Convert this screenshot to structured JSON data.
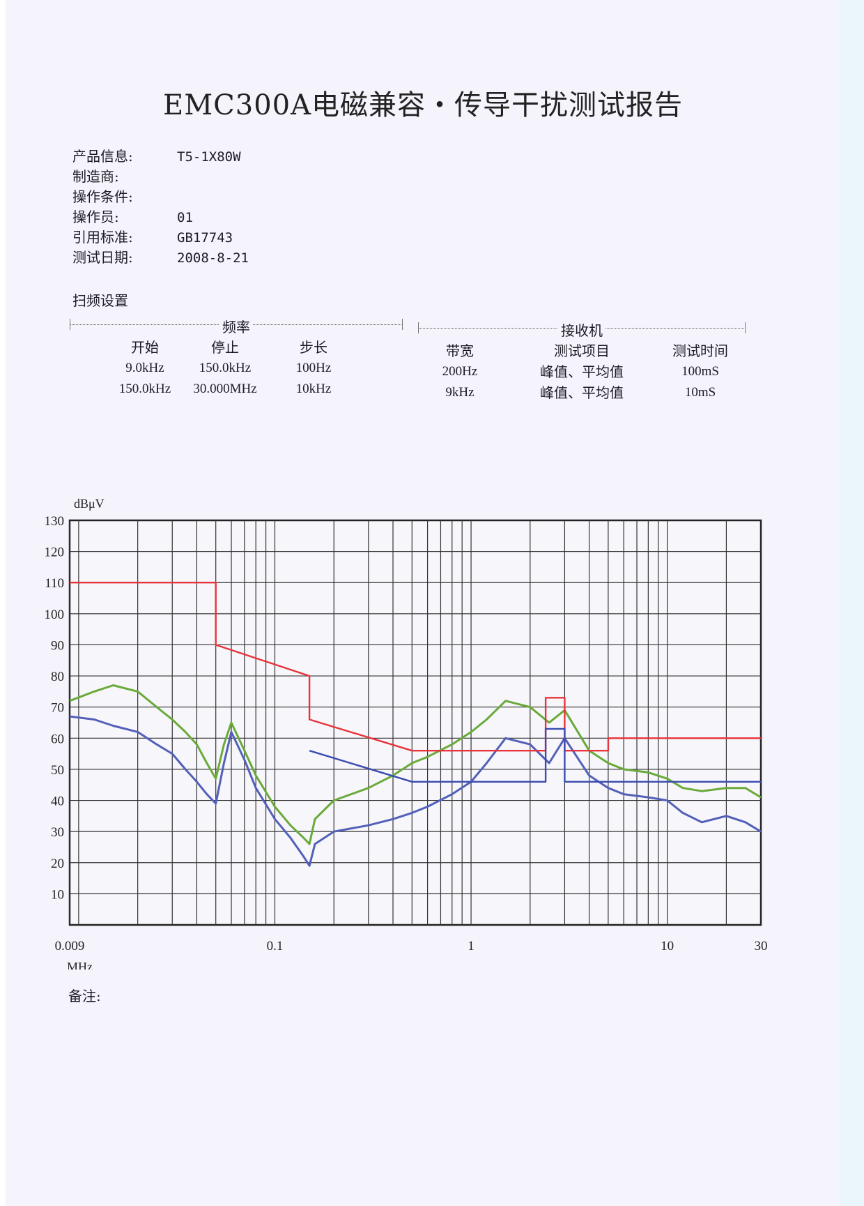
{
  "title": "EMC300A电磁兼容・传导干扰测试报告",
  "info": [
    {
      "label": "产品信息:",
      "value": "T5-1X80W"
    },
    {
      "label": "制造商:",
      "value": ""
    },
    {
      "label": "操作条件:",
      "value": ""
    },
    {
      "label": "操作员:",
      "value": "01"
    },
    {
      "label": "引用标准:",
      "value": "GB17743"
    },
    {
      "label": "测试日期:",
      "value": "2008-8-21"
    }
  ],
  "sweep": {
    "title": "扫频设置",
    "frequency": {
      "header": "频率",
      "start": {
        "header": "开始",
        "rows": [
          "9.0kHz",
          "150.0kHz"
        ]
      },
      "stop": {
        "header": "停止",
        "rows": [
          "150.0kHz",
          "30.000MHz"
        ]
      },
      "step": {
        "header": "步长",
        "rows": [
          "100Hz",
          "10kHz"
        ]
      }
    },
    "receiver": {
      "header": "接收机",
      "bandwidth": {
        "header": "带宽",
        "rows": [
          "200Hz",
          "9kHz"
        ]
      },
      "items": {
        "header": "测试项目",
        "rows": [
          "峰值、平均值",
          "峰值、平均值"
        ]
      },
      "time": {
        "header": "测试时间",
        "rows": [
          "100mS",
          "10mS"
        ]
      }
    }
  },
  "remarks_label": "备注:",
  "chart_data": {
    "type": "line",
    "ylabel": "dBμV",
    "xunit": "MHz",
    "xscale": "log",
    "xlim": [
      0.009,
      30
    ],
    "ylim": [
      0,
      130
    ],
    "yticks": [
      10,
      20,
      30,
      40,
      50,
      60,
      70,
      80,
      90,
      100,
      110,
      120,
      130
    ],
    "xtick_labels": [
      {
        "value": 0.009,
        "label": "0.009"
      },
      {
        "value": 0.1,
        "label": "0.1"
      },
      {
        "value": 1,
        "label": "1"
      },
      {
        "value": 10,
        "label": "10"
      },
      {
        "value": 30,
        "label": "30"
      }
    ],
    "grid": true,
    "series": [
      {
        "color": "#e8333a",
        "points": [
          [
            0.009,
            110
          ],
          [
            0.05,
            110
          ],
          [
            0.05,
            90
          ],
          [
            0.15,
            80
          ],
          [
            0.15,
            66
          ],
          [
            0.5,
            56
          ],
          [
            2.4,
            56
          ],
          [
            2.4,
            73
          ],
          [
            3,
            73
          ],
          [
            3,
            56
          ],
          [
            5,
            56
          ],
          [
            5,
            60
          ],
          [
            30,
            60
          ]
        ]
      },
      {
        "color": "#3a4cb0",
        "points": [
          [
            0.15,
            56
          ],
          [
            0.5,
            46
          ],
          [
            2.4,
            46
          ],
          [
            2.4,
            63
          ],
          [
            3,
            63
          ],
          [
            3,
            46
          ],
          [
            30,
            46
          ]
        ]
      },
      {
        "color": "#6aaa3a",
        "points": [
          [
            0.009,
            72
          ],
          [
            0.012,
            75
          ],
          [
            0.015,
            77
          ],
          [
            0.02,
            75
          ],
          [
            0.025,
            70
          ],
          [
            0.03,
            66
          ],
          [
            0.035,
            62
          ],
          [
            0.04,
            58
          ],
          [
            0.045,
            52
          ],
          [
            0.05,
            47
          ],
          [
            0.055,
            58
          ],
          [
            0.06,
            65
          ],
          [
            0.07,
            56
          ],
          [
            0.08,
            48
          ],
          [
            0.1,
            38
          ],
          [
            0.12,
            32
          ],
          [
            0.14,
            28
          ],
          [
            0.15,
            26
          ],
          [
            0.16,
            34
          ],
          [
            0.2,
            40
          ],
          [
            0.3,
            44
          ],
          [
            0.4,
            48
          ],
          [
            0.5,
            52
          ],
          [
            0.6,
            54
          ],
          [
            0.8,
            58
          ],
          [
            1,
            62
          ],
          [
            1.2,
            66
          ],
          [
            1.5,
            72
          ],
          [
            2,
            70
          ],
          [
            2.5,
            65
          ],
          [
            3,
            69
          ],
          [
            4,
            56
          ],
          [
            5,
            52
          ],
          [
            6,
            50
          ],
          [
            8,
            49
          ],
          [
            10,
            47
          ],
          [
            12,
            44
          ],
          [
            15,
            43
          ],
          [
            20,
            44
          ],
          [
            25,
            44
          ],
          [
            30,
            41
          ]
        ]
      },
      {
        "color": "#5260b8",
        "points": [
          [
            0.009,
            67
          ],
          [
            0.012,
            66
          ],
          [
            0.015,
            64
          ],
          [
            0.02,
            62
          ],
          [
            0.025,
            58
          ],
          [
            0.03,
            55
          ],
          [
            0.035,
            50
          ],
          [
            0.04,
            46
          ],
          [
            0.045,
            42
          ],
          [
            0.05,
            39
          ],
          [
            0.055,
            52
          ],
          [
            0.06,
            62
          ],
          [
            0.07,
            53
          ],
          [
            0.08,
            44
          ],
          [
            0.1,
            34
          ],
          [
            0.12,
            28
          ],
          [
            0.14,
            22
          ],
          [
            0.15,
            19
          ],
          [
            0.16,
            26
          ],
          [
            0.2,
            30
          ],
          [
            0.3,
            32
          ],
          [
            0.4,
            34
          ],
          [
            0.5,
            36
          ],
          [
            0.6,
            38
          ],
          [
            0.8,
            42
          ],
          [
            1,
            46
          ],
          [
            1.2,
            52
          ],
          [
            1.5,
            60
          ],
          [
            2,
            58
          ],
          [
            2.5,
            52
          ],
          [
            3,
            60
          ],
          [
            4,
            48
          ],
          [
            5,
            44
          ],
          [
            6,
            42
          ],
          [
            8,
            41
          ],
          [
            10,
            40
          ],
          [
            12,
            36
          ],
          [
            15,
            33
          ],
          [
            20,
            35
          ],
          [
            25,
            33
          ],
          [
            30,
            30
          ]
        ]
      }
    ]
  }
}
